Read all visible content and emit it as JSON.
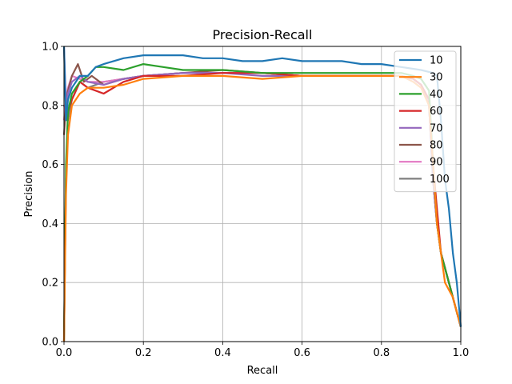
{
  "chart_data": {
    "type": "line",
    "title": "Precision-Recall",
    "xlabel": "Recall",
    "ylabel": "Precision",
    "xlim": [
      0.0,
      1.0
    ],
    "ylim": [
      0.0,
      1.0
    ],
    "xticks": [
      "0.0",
      "0.2",
      "0.4",
      "0.6",
      "0.8",
      "1.0"
    ],
    "yticks": [
      "0.0",
      "0.2",
      "0.4",
      "0.6",
      "0.8",
      "1.0"
    ],
    "grid": true,
    "legend_position": "top-right",
    "series": [
      {
        "name": "10",
        "color": "#1f77b4",
        "points": [
          [
            0.0,
            1.0
          ],
          [
            0.005,
            0.75
          ],
          [
            0.01,
            0.82
          ],
          [
            0.02,
            0.86
          ],
          [
            0.04,
            0.9
          ],
          [
            0.06,
            0.9
          ],
          [
            0.08,
            0.93
          ],
          [
            0.1,
            0.94
          ],
          [
            0.15,
            0.96
          ],
          [
            0.2,
            0.97
          ],
          [
            0.22,
            0.97
          ],
          [
            0.3,
            0.97
          ],
          [
            0.35,
            0.96
          ],
          [
            0.4,
            0.96
          ],
          [
            0.45,
            0.95
          ],
          [
            0.5,
            0.95
          ],
          [
            0.55,
            0.96
          ],
          [
            0.6,
            0.95
          ],
          [
            0.65,
            0.95
          ],
          [
            0.7,
            0.95
          ],
          [
            0.75,
            0.94
          ],
          [
            0.8,
            0.94
          ],
          [
            0.85,
            0.93
          ],
          [
            0.9,
            0.92
          ],
          [
            0.93,
            0.91
          ],
          [
            0.94,
            0.9
          ],
          [
            0.95,
            0.75
          ],
          [
            0.96,
            0.55
          ],
          [
            0.97,
            0.45
          ],
          [
            0.98,
            0.3
          ],
          [
            0.99,
            0.2
          ],
          [
            1.0,
            0.05
          ]
        ]
      },
      {
        "name": "30",
        "color": "#ff7f0e",
        "points": [
          [
            0.0,
            0.0
          ],
          [
            0.005,
            0.5
          ],
          [
            0.01,
            0.7
          ],
          [
            0.02,
            0.8
          ],
          [
            0.04,
            0.84
          ],
          [
            0.06,
            0.86
          ],
          [
            0.1,
            0.86
          ],
          [
            0.15,
            0.87
          ],
          [
            0.2,
            0.89
          ],
          [
            0.3,
            0.9
          ],
          [
            0.4,
            0.9
          ],
          [
            0.5,
            0.89
          ],
          [
            0.6,
            0.9
          ],
          [
            0.7,
            0.9
          ],
          [
            0.8,
            0.9
          ],
          [
            0.85,
            0.9
          ],
          [
            0.88,
            0.88
          ],
          [
            0.9,
            0.86
          ],
          [
            0.92,
            0.8
          ],
          [
            0.93,
            0.6
          ],
          [
            0.94,
            0.4
          ],
          [
            0.95,
            0.3
          ],
          [
            0.96,
            0.2
          ],
          [
            0.98,
            0.15
          ],
          [
            1.0,
            0.05
          ]
        ]
      },
      {
        "name": "40",
        "color": "#2ca02c",
        "points": [
          [
            0.0,
            0.0
          ],
          [
            0.005,
            0.6
          ],
          [
            0.01,
            0.78
          ],
          [
            0.02,
            0.84
          ],
          [
            0.04,
            0.88
          ],
          [
            0.06,
            0.9
          ],
          [
            0.08,
            0.93
          ],
          [
            0.1,
            0.93
          ],
          [
            0.15,
            0.92
          ],
          [
            0.2,
            0.94
          ],
          [
            0.25,
            0.93
          ],
          [
            0.3,
            0.92
          ],
          [
            0.4,
            0.92
          ],
          [
            0.5,
            0.91
          ],
          [
            0.6,
            0.91
          ],
          [
            0.7,
            0.91
          ],
          [
            0.8,
            0.91
          ],
          [
            0.85,
            0.91
          ],
          [
            0.88,
            0.9
          ],
          [
            0.9,
            0.89
          ],
          [
            0.92,
            0.85
          ],
          [
            0.93,
            0.6
          ],
          [
            0.94,
            0.4
          ],
          [
            0.95,
            0.3
          ],
          [
            0.97,
            0.2
          ],
          [
            1.0,
            0.05
          ]
        ]
      },
      {
        "name": "60",
        "color": "#d62728",
        "points": [
          [
            0.0,
            0.0
          ],
          [
            0.005,
            0.55
          ],
          [
            0.01,
            0.78
          ],
          [
            0.02,
            0.82
          ],
          [
            0.04,
            0.88
          ],
          [
            0.06,
            0.86
          ],
          [
            0.1,
            0.84
          ],
          [
            0.15,
            0.88
          ],
          [
            0.2,
            0.9
          ],
          [
            0.3,
            0.9
          ],
          [
            0.4,
            0.91
          ],
          [
            0.5,
            0.91
          ],
          [
            0.6,
            0.9
          ],
          [
            0.7,
            0.9
          ],
          [
            0.8,
            0.9
          ],
          [
            0.85,
            0.9
          ],
          [
            0.88,
            0.89
          ],
          [
            0.9,
            0.87
          ],
          [
            0.92,
            0.82
          ],
          [
            0.93,
            0.6
          ],
          [
            0.94,
            0.45
          ],
          [
            0.95,
            0.3
          ],
          [
            0.97,
            0.2
          ],
          [
            1.0,
            0.05
          ]
        ]
      },
      {
        "name": "70",
        "color": "#9467bd",
        "points": [
          [
            0.0,
            1.0
          ],
          [
            0.005,
            0.8
          ],
          [
            0.01,
            0.84
          ],
          [
            0.02,
            0.88
          ],
          [
            0.04,
            0.9
          ],
          [
            0.06,
            0.88
          ],
          [
            0.1,
            0.87
          ],
          [
            0.15,
            0.89
          ],
          [
            0.2,
            0.9
          ],
          [
            0.3,
            0.91
          ],
          [
            0.4,
            0.91
          ],
          [
            0.5,
            0.9
          ],
          [
            0.6,
            0.9
          ],
          [
            0.7,
            0.9
          ],
          [
            0.8,
            0.9
          ],
          [
            0.85,
            0.9
          ],
          [
            0.88,
            0.89
          ],
          [
            0.9,
            0.87
          ],
          [
            0.92,
            0.8
          ],
          [
            0.93,
            0.55
          ],
          [
            0.94,
            0.4
          ],
          [
            0.95,
            0.3
          ],
          [
            0.97,
            0.2
          ],
          [
            1.0,
            0.05
          ]
        ]
      },
      {
        "name": "80",
        "color": "#8c564b",
        "points": [
          [
            0.0,
            0.7
          ],
          [
            0.005,
            0.8
          ],
          [
            0.01,
            0.85
          ],
          [
            0.02,
            0.9
          ],
          [
            0.035,
            0.94
          ],
          [
            0.05,
            0.88
          ],
          [
            0.07,
            0.9
          ],
          [
            0.1,
            0.87
          ],
          [
            0.15,
            0.89
          ],
          [
            0.2,
            0.9
          ],
          [
            0.3,
            0.91
          ],
          [
            0.4,
            0.92
          ],
          [
            0.5,
            0.91
          ],
          [
            0.6,
            0.9
          ],
          [
            0.7,
            0.9
          ],
          [
            0.8,
            0.9
          ],
          [
            0.85,
            0.9
          ],
          [
            0.88,
            0.89
          ],
          [
            0.9,
            0.87
          ],
          [
            0.92,
            0.8
          ],
          [
            0.93,
            0.55
          ],
          [
            0.94,
            0.4
          ],
          [
            0.95,
            0.3
          ],
          [
            0.97,
            0.2
          ],
          [
            1.0,
            0.05
          ]
        ]
      },
      {
        "name": "90",
        "color": "#e377c2",
        "points": [
          [
            0.0,
            0.75
          ],
          [
            0.005,
            0.82
          ],
          [
            0.01,
            0.86
          ],
          [
            0.02,
            0.9
          ],
          [
            0.04,
            0.89
          ],
          [
            0.06,
            0.88
          ],
          [
            0.1,
            0.88
          ],
          [
            0.15,
            0.89
          ],
          [
            0.2,
            0.9
          ],
          [
            0.3,
            0.91
          ],
          [
            0.4,
            0.91
          ],
          [
            0.5,
            0.91
          ],
          [
            0.6,
            0.9
          ],
          [
            0.7,
            0.9
          ],
          [
            0.8,
            0.9
          ],
          [
            0.85,
            0.9
          ],
          [
            0.88,
            0.89
          ],
          [
            0.9,
            0.87
          ],
          [
            0.92,
            0.8
          ],
          [
            0.93,
            0.55
          ],
          [
            0.94,
            0.4
          ],
          [
            0.95,
            0.3
          ],
          [
            0.97,
            0.2
          ],
          [
            1.0,
            0.05
          ]
        ]
      },
      {
        "name": "100",
        "color": "#7f7f7f",
        "points": [
          [
            0.0,
            0.8
          ],
          [
            0.005,
            0.78
          ],
          [
            0.01,
            0.75
          ],
          [
            0.02,
            0.82
          ],
          [
            0.03,
            0.85
          ],
          [
            0.04,
            0.88
          ],
          [
            0.06,
            0.86
          ],
          [
            0.1,
            0.88
          ],
          [
            0.15,
            0.89
          ],
          [
            0.2,
            0.9
          ],
          [
            0.3,
            0.91
          ],
          [
            0.4,
            0.91
          ],
          [
            0.5,
            0.91
          ],
          [
            0.6,
            0.9
          ],
          [
            0.7,
            0.9
          ],
          [
            0.8,
            0.9
          ],
          [
            0.85,
            0.9
          ],
          [
            0.88,
            0.89
          ],
          [
            0.9,
            0.87
          ],
          [
            0.92,
            0.8
          ],
          [
            0.93,
            0.55
          ],
          [
            0.94,
            0.4
          ],
          [
            0.95,
            0.3
          ],
          [
            0.97,
            0.2
          ],
          [
            1.0,
            0.05
          ]
        ]
      }
    ]
  }
}
